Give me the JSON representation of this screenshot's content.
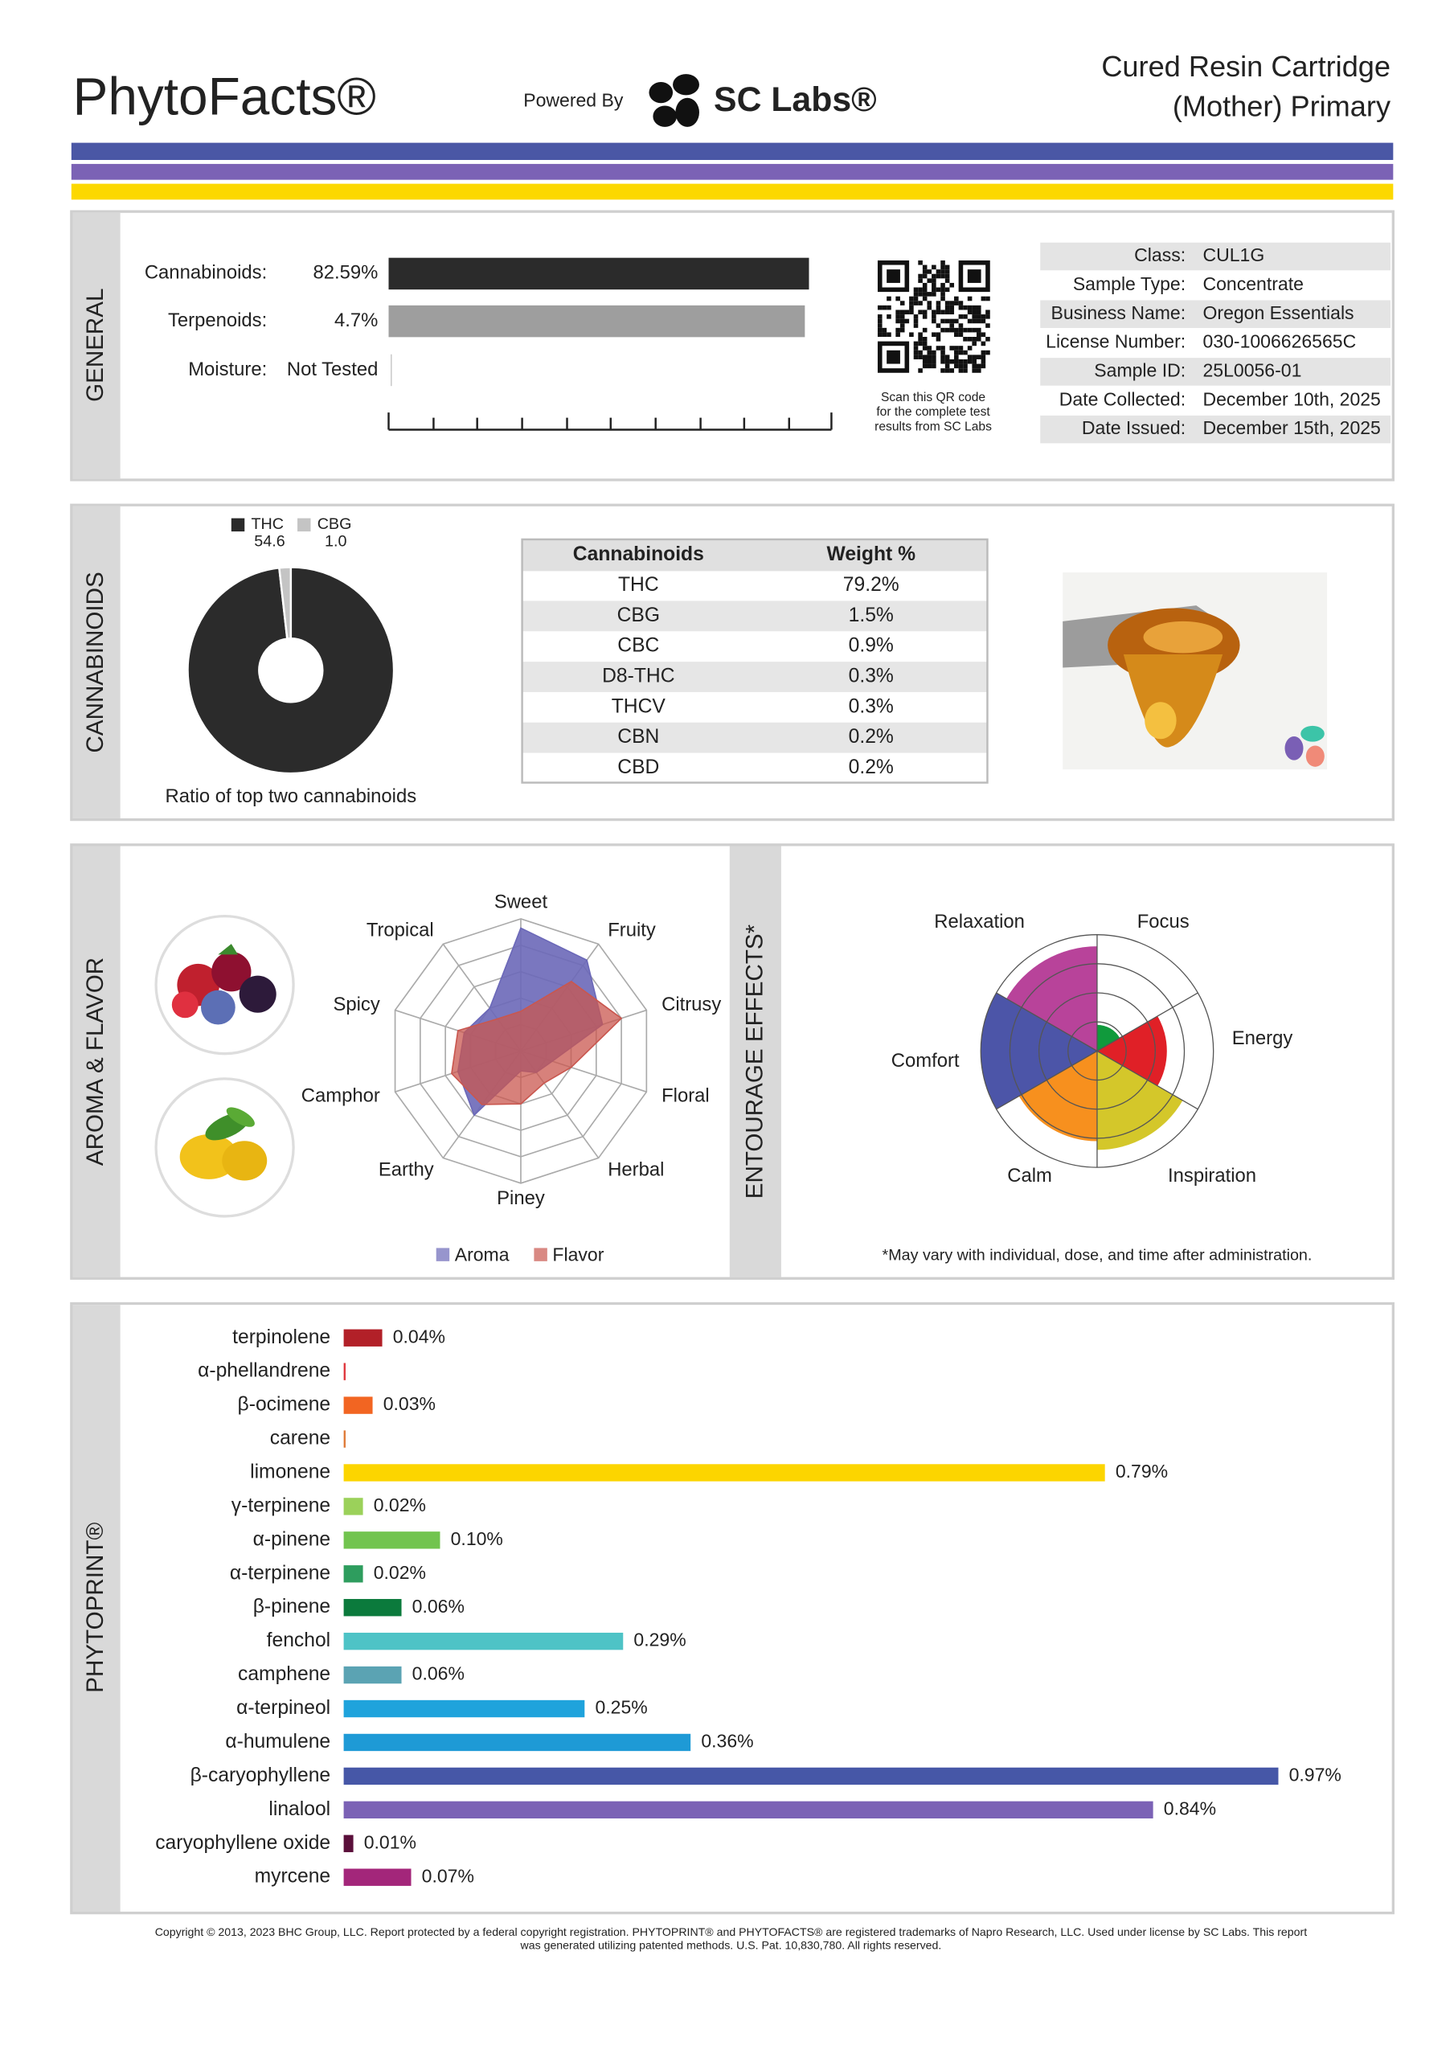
{
  "header": {
    "brand": "PhytoFacts®",
    "powered_by": "Powered By",
    "lab": "SC Labs®",
    "product": [
      "Cured Resin Cartridge",
      "(Mother) Primary"
    ]
  },
  "general": {
    "section": "GENERAL",
    "bars": [
      {
        "label": "Cannabinoids:",
        "value": 82.59,
        "value_label": "82.59%",
        "xlim": [
          0,
          87
        ],
        "color": "#2b2b2b"
      },
      {
        "label": "Terpenoids:",
        "value": 4.7,
        "value_label": "4.7%",
        "xlim": [
          0,
          5
        ],
        "color": "#9e9e9e"
      }
    ],
    "moisture": {
      "label": "Moisture:",
      "value": "Not Tested"
    },
    "qr_caption": [
      "Scan this QR code",
      "for the complete test",
      "results from SC Labs"
    ],
    "info": [
      [
        "Class:",
        "CUL1G"
      ],
      [
        "Sample Type:",
        "Concentrate"
      ],
      [
        "Business Name:",
        "Oregon Essentials"
      ],
      [
        "License Number:",
        "030-1006626565C"
      ],
      [
        "Sample ID:",
        "25L0056-01"
      ],
      [
        "Date Collected:",
        "December 10th, 2025"
      ],
      [
        "Date Issued:",
        "December 15th, 2025"
      ]
    ]
  },
  "cannabinoids": {
    "section": "CANNABINOIDS",
    "donut": {
      "type": "pie",
      "series": [
        {
          "name": "THC",
          "value": 54.6,
          "color": "#2b2b2b"
        },
        {
          "name": "CBG",
          "value": 1.0,
          "value_label": "1.0",
          "color": "#c4c4c4"
        }
      ],
      "caption": "Ratio of top two cannabinoids"
    },
    "table": {
      "header": [
        "Cannabinoids",
        "Weight %"
      ],
      "rows": [
        [
          "THC",
          "79.2%"
        ],
        [
          "CBG",
          "1.5%"
        ],
        [
          "CBC",
          "0.9%"
        ],
        [
          "D8-THC",
          "0.3%"
        ],
        [
          "THCV",
          "0.3%"
        ],
        [
          "CBN",
          "0.2%"
        ],
        [
          "CBD",
          "0.2%"
        ]
      ]
    }
  },
  "aroma": {
    "section": "AROMA & FLAVOR",
    "type": "radar",
    "axes": [
      "Sweet",
      "Fruity",
      "Citrusy",
      "Floral",
      "Herbal",
      "Piney",
      "Earthy",
      "Camphor",
      "Spicy",
      "Tropical"
    ],
    "rlim": [
      0,
      10
    ],
    "rticks": [
      2,
      4,
      6,
      8,
      10
    ],
    "series": [
      {
        "name": "Aroma",
        "color": "#6b68b8",
        "values": [
          9.3,
          8.5,
          6.5,
          2.5,
          2,
          1.5,
          6,
          5,
          4.5,
          4
        ]
      },
      {
        "name": "Flavor",
        "color": "#c9574f",
        "values": [
          3,
          6.5,
          8,
          4,
          3,
          4,
          5,
          5.5,
          5,
          3
        ]
      }
    ]
  },
  "effects": {
    "section": "ENTOURAGE EFFECTS*",
    "type": "polar",
    "categories": [
      "Focus",
      "Energy",
      "Inspiration",
      "Calm",
      "Comfort",
      "Relaxation"
    ],
    "colors": [
      "#109a3c",
      "#e02027",
      "#d4c72a",
      "#f7901e",
      "#4c55a8",
      "#b8439a"
    ],
    "values": [
      0.9,
      2.4,
      3.4,
      3.1,
      4,
      3.6
    ],
    "rlim": [
      0,
      4
    ],
    "rticks": [
      1,
      2,
      3,
      4
    ],
    "note": "*May vary with individual, dose, and time after administration."
  },
  "phytoprint": {
    "section": "PHYTOPRINT®",
    "type": "bar",
    "categories": [
      "terpinolene",
      "α-phellandrene",
      "β-ocimene",
      "carene",
      "limonene",
      "γ-terpinene",
      "α-pinene",
      "α-terpinene",
      "β-pinene",
      "fenchol",
      "camphene",
      "α-terpineol",
      "α-humulene",
      "β-caryophyllene",
      "linalool",
      "caryophyllene oxide",
      "myrcene"
    ],
    "values": [
      0.04,
      0.002,
      0.03,
      0.002,
      0.79,
      0.02,
      0.1,
      0.02,
      0.06,
      0.29,
      0.06,
      0.25,
      0.36,
      0.97,
      0.84,
      0.01,
      0.07
    ],
    "value_labels": [
      "0.04%",
      null,
      "0.03%",
      null,
      "0.79%",
      "0.02%",
      "0.10%",
      "0.02%",
      "0.06%",
      "0.29%",
      "0.06%",
      "0.25%",
      "0.36%",
      "0.97%",
      "0.84%",
      "0.01%",
      "0.07%"
    ],
    "colors": [
      "#b22028",
      "#e0383e",
      "#f26522",
      "#e07b39",
      "#fcd500",
      "#9bd15a",
      "#72c44f",
      "#2e9d5e",
      "#0b7a3c",
      "#4ec3c6",
      "#5ba3b3",
      "#1fa3dc",
      "#1e9ad6",
      "#4657a7",
      "#7b62b5",
      "#5a0f3a",
      "#a3267a"
    ],
    "xlim": [
      0,
      1
    ]
  },
  "footer": [
    "Copyright © 2013, 2023 BHC Group, LLC. Report protected by a federal copyright registration. PHYTOPRINT® and PHYTOFACTS® are registered trademarks of Napro Research, LLC. Used under license by SC Labs. This report",
    "was generated utilizing patented methods. U.S. Pat. 10,830,780. All rights reserved."
  ]
}
